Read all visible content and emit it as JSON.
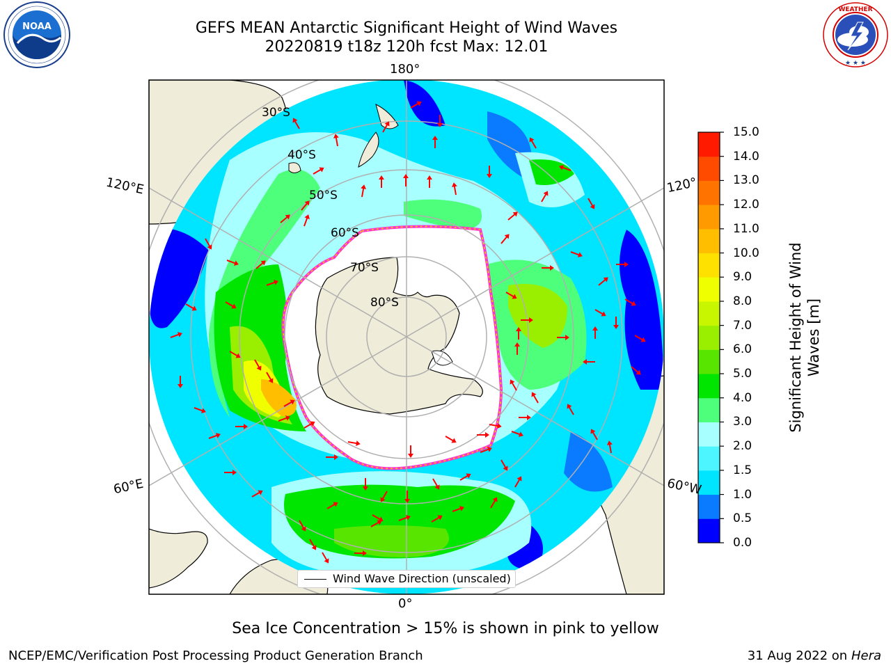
{
  "header": {
    "title_line1": "GEFS MEAN Antarctic Significant Height of Wind Waves",
    "title_line2": "20220819 t18z 120h fcst   Max: 12.01"
  },
  "logos": {
    "left": {
      "name": "NOAA",
      "ring_text": "NATIONAL OCEANIC AND ATMOSPHERIC ADMINISTRATION · U.S. DEPARTMENT OF COMMERCE"
    },
    "right": {
      "name": "National Weather Service",
      "ring_text": "NATIONAL WEATHER SERVICE"
    }
  },
  "map": {
    "projection": "south-polar-stereographic",
    "longitude_labels": {
      "top": "180°",
      "bottom": "0°",
      "left_upper": "120°E",
      "left_lower": "60°E",
      "right_upper": "120°",
      "right_lower": "60°W"
    },
    "latitude_labels": [
      "30°S",
      "40°S",
      "50°S",
      "60°S",
      "70°S",
      "80°S"
    ],
    "legend_label": "Wind Wave Direction (unscaled)",
    "arrow_color": "#ff0000",
    "land_color": "#efecd9",
    "ice_edge_colors": [
      "#ff33cc",
      "#ffd200"
    ]
  },
  "colorbar": {
    "title": "Significant Height of Wind Waves [m]",
    "tick_labels": [
      "0.0",
      "0.5",
      "1.0",
      "1.5",
      "2.0",
      "3.0",
      "4.0",
      "5.0",
      "6.0",
      "7.0",
      "8.0",
      "9.0",
      "10.0",
      "11.0",
      "12.0",
      "13.0",
      "14.0",
      "15.0"
    ],
    "colors": [
      "#0000ff",
      "#0a7aff",
      "#00e5ff",
      "#4cf5ff",
      "#a8ffff",
      "#4dff7a",
      "#00e600",
      "#58e600",
      "#9aef00",
      "#c8f500",
      "#f0ff00",
      "#ffe100",
      "#ffbe00",
      "#ff9a00",
      "#ff7300",
      "#ff4b00",
      "#ff1a00"
    ]
  },
  "notes": {
    "ice": "Sea Ice Concentration > 15% is shown in pink to yellow",
    "footer_left": "NCEP/EMC/Verification Post Processing Product Generation Branch",
    "footer_date": "31 Aug 2022 on",
    "footer_machine": "Hera"
  }
}
